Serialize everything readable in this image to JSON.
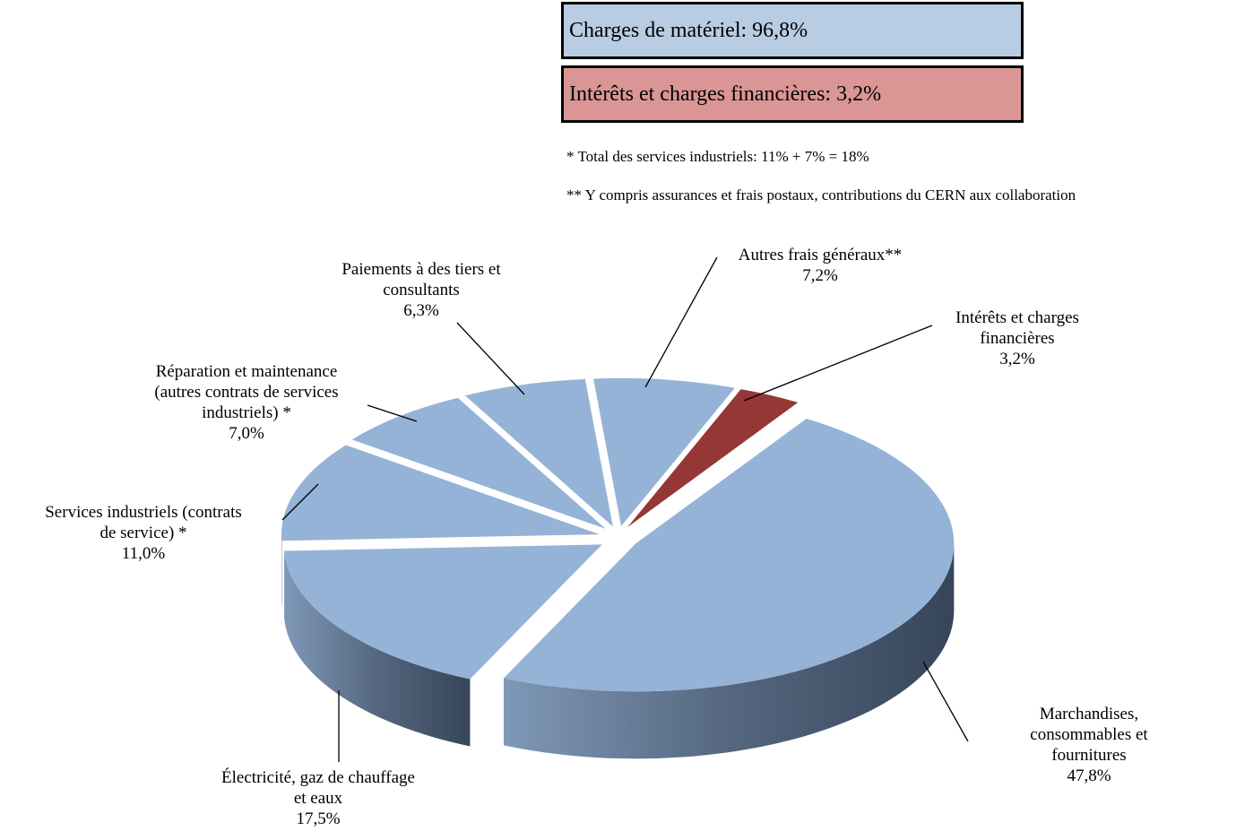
{
  "summary": [
    {
      "label": "Charges de matériel: 96,8%",
      "color": "#b8cce4"
    },
    {
      "label": "Intérêts et charges financières: 3,2%",
      "color": "#d99694"
    }
  ],
  "notes": [
    "* Total des services industriels: 11% + 7% = 18%",
    "** Y compris assurances et frais postaux, contributions du CERN aux collaboration"
  ],
  "chart_data": {
    "type": "pie3d",
    "categories": [
      "Autres frais généraux**",
      "Intérêts et charges\nfinancières",
      "Marchandises,\nconsommables et fournitures",
      "Électricité, gaz de chauffage\net eaux",
      "Services industriels (contrats\nde service) *",
      "Réparation et maintenance\n(autres contrats de services\nindustriels) *",
      "Paiements à des tiers et\nconsultants"
    ],
    "values": [
      7.2,
      3.2,
      47.8,
      17.5,
      11.0,
      7.0,
      6.3
    ],
    "value_labels": [
      "7,2%",
      "3,2%",
      "47,8%",
      "17,5%",
      "11,0%",
      "7,0%",
      "6,3%"
    ],
    "colors": [
      "#95b3d7",
      "#953735",
      "#95b3d7",
      "#95b3d7",
      "#95b3d7",
      "#95b3d7",
      "#95b3d7"
    ]
  }
}
